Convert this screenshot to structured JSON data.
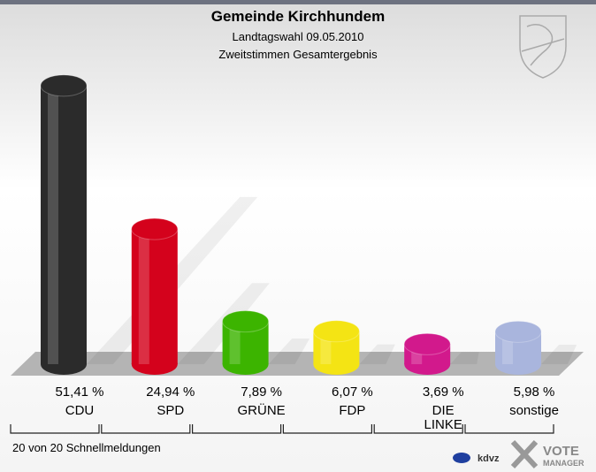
{
  "chart_data": {
    "type": "bar",
    "title": "Gemeinde Kirchhundem",
    "subtitle": [
      "Landtagswahl 09.05.2010",
      "Zweitstimmen Gesamtergebnis"
    ],
    "categories": [
      "CDU",
      "SPD",
      "GRÜNE",
      "FDP",
      "DIE LINKE",
      "sonstige"
    ],
    "values": [
      51.41,
      24.94,
      7.89,
      6.07,
      3.69,
      5.98
    ],
    "value_labels": [
      "51,41 %",
      "24,94 %",
      "7,89 %",
      "6,07 %",
      "3,69 %",
      "5,98 %"
    ],
    "colors": [
      "#2b2b2b",
      "#d4021c",
      "#3cb400",
      "#f4e414",
      "#d2198c",
      "#a9b5dd"
    ],
    "footer": "20 von 20 Schnellmeldungen",
    "branding": [
      "kdvz",
      "VOTE",
      "MANAGER"
    ]
  }
}
